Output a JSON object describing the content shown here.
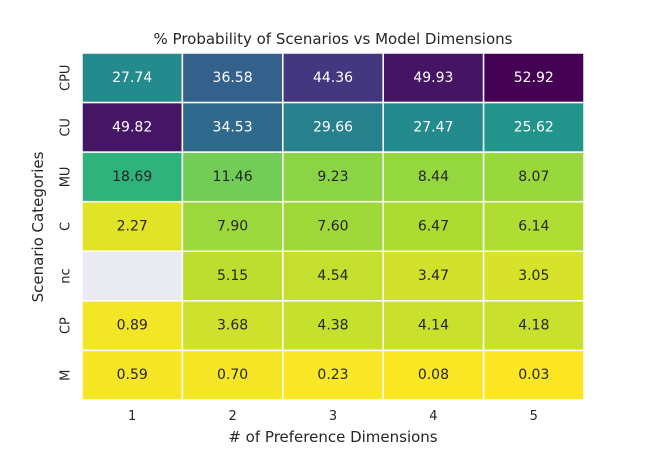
{
  "chart_data": {
    "type": "heatmap",
    "title": "% Probability of Scenarios vs Model Dimensions",
    "xlabel": "# of Preference Dimensions",
    "ylabel": "Scenario Categories",
    "x": [
      "1",
      "2",
      "3",
      "4",
      "5"
    ],
    "y": [
      "CPU",
      "CU",
      "MU",
      "C",
      "nc",
      "CP",
      "M"
    ],
    "values": [
      [
        27.74,
        36.58,
        44.36,
        49.93,
        52.92
      ],
      [
        49.82,
        34.53,
        29.66,
        27.47,
        25.62
      ],
      [
        18.69,
        11.46,
        9.23,
        8.44,
        8.07
      ],
      [
        2.27,
        7.9,
        7.6,
        6.47,
        6.14
      ],
      [
        null,
        5.15,
        4.54,
        3.47,
        3.05
      ],
      [
        0.89,
        3.68,
        4.38,
        4.14,
        4.18
      ],
      [
        0.59,
        0.7,
        0.23,
        0.08,
        0.03
      ]
    ],
    "labels": [
      [
        "27.74",
        "36.58",
        "44.36",
        "49.93",
        "52.92"
      ],
      [
        "49.82",
        "34.53",
        "29.66",
        "27.47",
        "25.62"
      ],
      [
        "18.69",
        "11.46",
        "9.23",
        "8.44",
        "8.07"
      ],
      [
        "2.27",
        "7.90",
        "7.60",
        "6.47",
        "6.14"
      ],
      [
        "",
        "5.15",
        "4.54",
        "3.47",
        "3.05"
      ],
      [
        "0.89",
        "3.68",
        "4.38",
        "4.14",
        "4.18"
      ],
      [
        "0.59",
        "0.70",
        "0.23",
        "0.08",
        "0.03"
      ]
    ],
    "colormap": "viridis_r",
    "missing_color": "#eaeaf2",
    "grid": false,
    "legend": "none"
  }
}
